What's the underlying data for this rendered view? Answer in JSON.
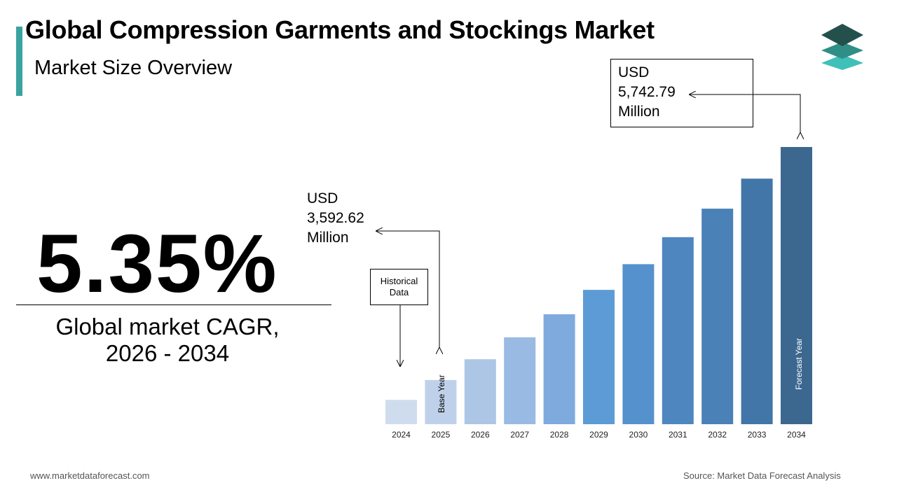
{
  "header": {
    "title": "Global Compression Garments and Stockings Market",
    "subtitle": "Market Size Overview"
  },
  "cagr": {
    "value": "5.35%",
    "label_line1": "Global market CAGR,",
    "label_line2": "2026 - 2034"
  },
  "callouts": {
    "start": {
      "line1": "USD",
      "line2": "3,592.62",
      "line3": "Million"
    },
    "end": {
      "line1": "USD",
      "line2": "5,742.79",
      "line3": "Million"
    },
    "historical": {
      "line1": "Historical",
      "line2": "Data"
    },
    "base_year": "Base Year",
    "forecast_year": "Forecast Year"
  },
  "footer": {
    "website": "www.marketdataforecast.com",
    "source": "Source: Market Data Forecast Analysis"
  },
  "colors": {
    "accent": "#3aa3a0",
    "bars": [
      "#cfdcee",
      "#bfd1ea",
      "#adc6e6",
      "#99bae3",
      "#7faadd",
      "#5d9bd6",
      "#5591cc",
      "#4e87c0",
      "#4a81b7",
      "#4376a8",
      "#3c6890"
    ]
  },
  "chart_data": {
    "type": "bar",
    "title": "",
    "xlabel": "",
    "ylabel": "",
    "categories": [
      "2024",
      "2025",
      "2026",
      "2027",
      "2028",
      "2029",
      "2030",
      "2031",
      "2032",
      "2033",
      "2034"
    ],
    "values": [
      3410,
      3592.62,
      3785,
      3987,
      4200,
      4425,
      4662,
      4911,
      5174,
      5451,
      5742.79
    ],
    "unit": "USD Million",
    "annotated_values": {
      "2025": "USD 3,592.62 Million",
      "2034": "USD 5,742.79 Million"
    },
    "grid": false,
    "legend": "none"
  }
}
